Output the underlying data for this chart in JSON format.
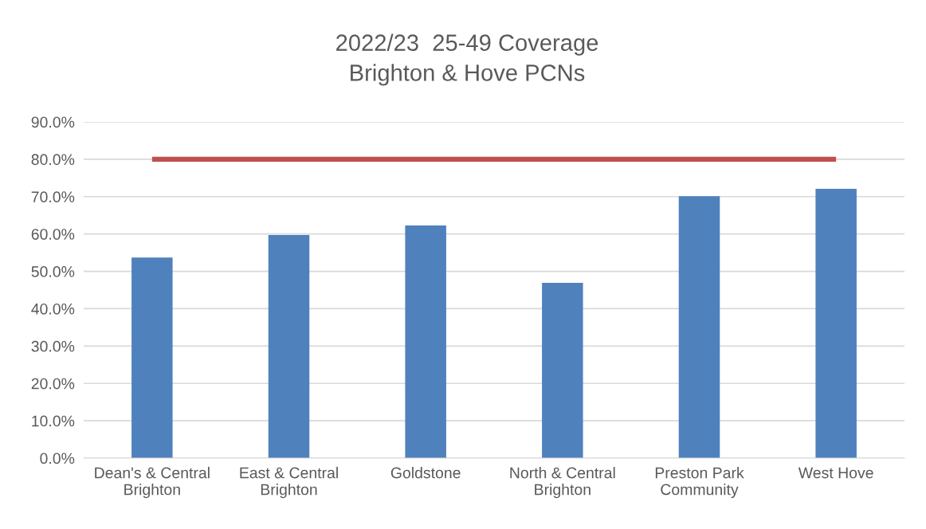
{
  "chart_data": {
    "type": "bar",
    "title": "2022/23  25-49 Coverage\nBrighton & Hove PCNs",
    "categories": [
      "Dean's & Central\nBrighton",
      "East & Central\nBrighton",
      "Goldstone",
      "North & Central\nBrighton",
      "Preston Park\nCommunity",
      "West Hove"
    ],
    "series": [
      {
        "color": "#4f81bd",
        "values": [
          53.7,
          59.7,
          62.3,
          46.9,
          70.1,
          72.1
        ]
      },
      {
        "type": "line",
        "color": "#c0504d",
        "values": [
          80,
          80,
          80,
          80,
          80,
          80
        ]
      }
    ],
    "ylim": [
      0,
      90
    ],
    "yticks": [
      {
        "value": 0,
        "label": "0.0%"
      },
      {
        "value": 10,
        "label": "10.0%"
      },
      {
        "value": 20,
        "label": "20.0%"
      },
      {
        "value": 30,
        "label": "30.0%"
      },
      {
        "value": 40,
        "label": "40.0%"
      },
      {
        "value": 50,
        "label": "50.0%"
      },
      {
        "value": 60,
        "label": "60.0%"
      },
      {
        "value": 70,
        "label": "70.0%"
      },
      {
        "value": 80,
        "label": "80.0%"
      },
      {
        "value": 90,
        "label": "90.0%"
      }
    ],
    "grid": "y",
    "legend": false
  }
}
